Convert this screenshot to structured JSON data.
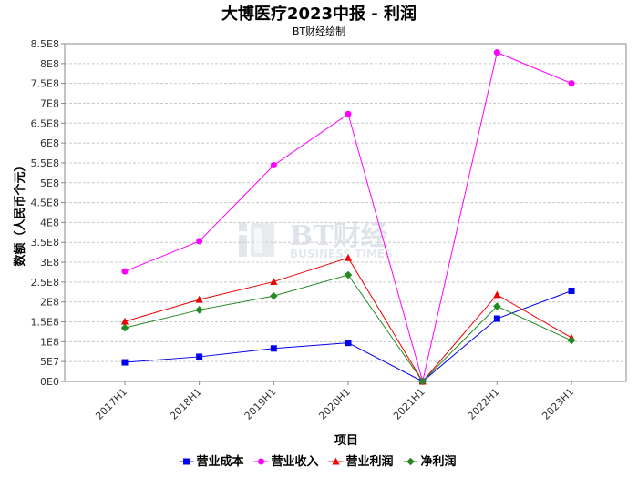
{
  "chart_data": {
    "type": "line",
    "title": "大博医疗2023中报 - 利润",
    "subtitle": "BT财经绘制",
    "xlabel": "项目",
    "ylabel": "数额（人民币个元）",
    "categories": [
      "2017H1",
      "2018H1",
      "2019H1",
      "2020H1",
      "2021H1",
      "2022H1",
      "2023H1"
    ],
    "ylim": [
      0,
      850000000
    ],
    "yticks": [
      "0E0",
      "5E7",
      "1E8",
      "1.5E8",
      "2E8",
      "2.5E8",
      "3E8",
      "3.5E8",
      "4E8",
      "4.5E8",
      "5E8",
      "5.5E8",
      "6E8",
      "6.5E8",
      "7E8",
      "7.5E8",
      "8E8",
      "8.5E8"
    ],
    "grid": true,
    "legend_position": "bottom",
    "series": [
      {
        "name": "营业成本",
        "color": "#0000ee",
        "marker": "square",
        "values": [
          48000000,
          62000000,
          83000000,
          97000000,
          0,
          158000000,
          228000000
        ]
      },
      {
        "name": "营业收入",
        "color": "#ff00ff",
        "marker": "circle",
        "values": [
          277000000,
          353000000,
          544000000,
          673000000,
          0,
          828000000,
          750000000
        ]
      },
      {
        "name": "营业利润",
        "color": "#ee0000",
        "marker": "triangle",
        "values": [
          151000000,
          206000000,
          251000000,
          311000000,
          0,
          218000000,
          110000000
        ]
      },
      {
        "name": "净利润",
        "color": "#228b22",
        "marker": "diamond",
        "values": [
          135000000,
          180000000,
          215000000,
          268000000,
          0,
          189000000,
          103000000
        ]
      }
    ],
    "watermark": {
      "main": "BT财经",
      "sub": "BUSINESS TIMES"
    }
  }
}
